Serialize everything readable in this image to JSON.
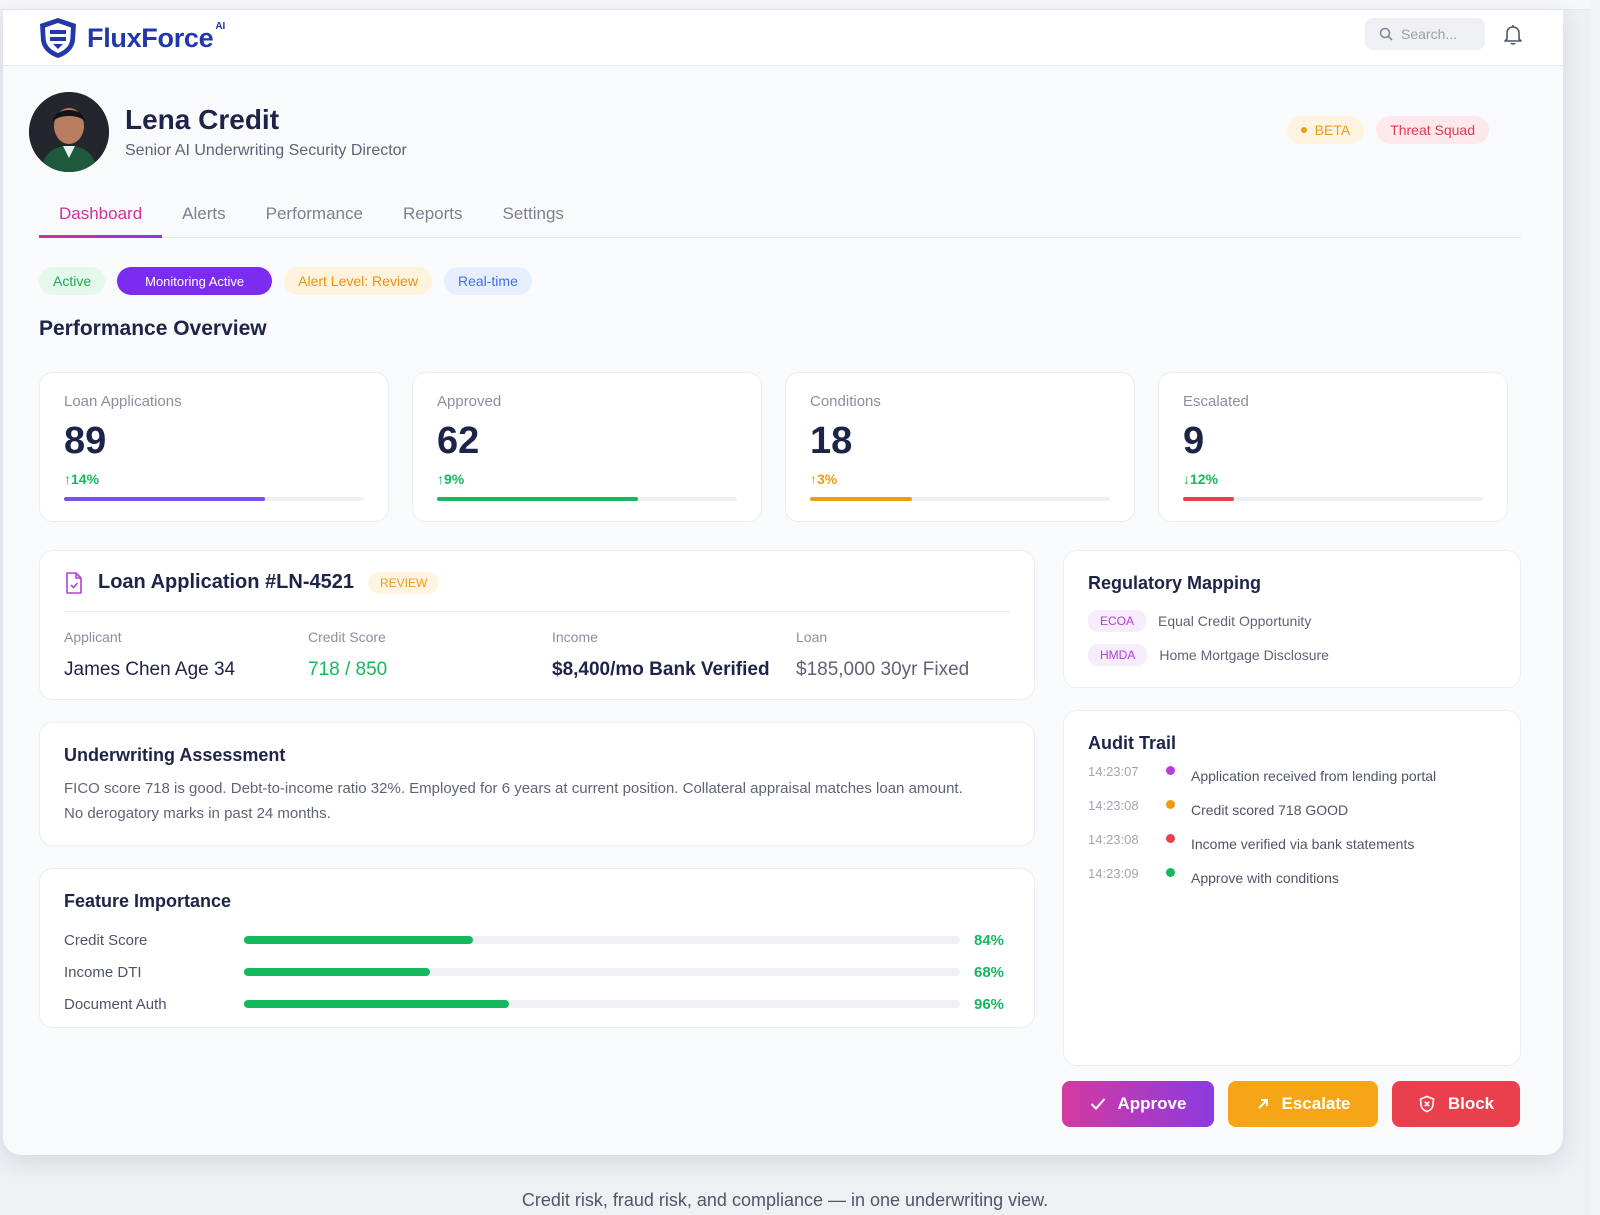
{
  "brand": {
    "name": "FluxForce",
    "superscript": "AI",
    "color": "#2338a8"
  },
  "header": {
    "search_placeholder": "Search...",
    "icons": [
      "search-icon",
      "bell-icon"
    ]
  },
  "profile": {
    "name": "Lena Credit",
    "title": "Senior AI Underwriting Security Director",
    "badges": [
      "BETA",
      "Threat Squad"
    ]
  },
  "tabs": [
    "Dashboard",
    "Alerts",
    "Performance",
    "Reports",
    "Settings"
  ],
  "active_tab": "Dashboard",
  "status_chips": [
    "Active",
    "Monitoring Active",
    "Alert Level: Review",
    "Real-time"
  ],
  "overview": {
    "title": "Performance Overview",
    "kpis": [
      {
        "label": "Loan Applications",
        "value": "89",
        "delta": "↑14%",
        "delta_color": "#16b85d",
        "bar_color": "#7b4ef0",
        "progress": 0.67
      },
      {
        "label": "Approved",
        "value": "62",
        "delta": "↑9%",
        "delta_color": "#16b85d",
        "bar_color": "#16b85d",
        "progress": 0.67
      },
      {
        "label": "Conditions",
        "value": "18",
        "delta": "↑3%",
        "delta_color": "#f29a13",
        "bar_color": "#f29a13",
        "progress": 0.34
      },
      {
        "label": "Escalated",
        "value": "9",
        "delta": "↓12%",
        "delta_color": "#16b85d",
        "bar_color": "#ea3f4c",
        "progress": 0.17
      }
    ]
  },
  "loan": {
    "title": "Loan Application #LN-4521",
    "status": "REVIEW",
    "fields": [
      {
        "label": "Applicant",
        "value": "James Chen Age 34",
        "color": "#1e2447"
      },
      {
        "label": "Credit Score",
        "value": "718 / 850",
        "color": "#16b85d"
      },
      {
        "label": "Income",
        "value": "$8,400/mo Bank Verified",
        "color": "#1e2447"
      },
      {
        "label": "Loan",
        "value": "$185,000 30yr Fixed",
        "color": "#5e6477"
      }
    ]
  },
  "assessment": {
    "title": "Underwriting Assessment",
    "text": "FICO score 718 is good. Debt-to-income ratio 32%. Employed for 6 years at current position. Collateral appraisal matches loan amount. No derogatory marks in past 24 months."
  },
  "features": {
    "title": "Feature Importance",
    "rows": [
      {
        "name": "Credit Score",
        "pct": "84%",
        "fill": 0.32
      },
      {
        "name": "Income DTI",
        "pct": "68%",
        "fill": 0.26
      },
      {
        "name": "Document Auth",
        "pct": "96%",
        "fill": 0.37
      }
    ]
  },
  "regulatory": {
    "title": "Regulatory Mapping",
    "items": [
      {
        "tag": "ECOA",
        "desc": "Equal Credit Opportunity"
      },
      {
        "tag": "HMDA",
        "desc": "Home Mortgage Disclosure"
      }
    ]
  },
  "audit": {
    "title": "Audit Trail",
    "entries": [
      {
        "time": "14:23:07",
        "text": "Application received from lending portal",
        "color": "#b340d6"
      },
      {
        "time": "14:23:08",
        "text": "Credit scored 718 GOOD",
        "color": "#f29a13"
      },
      {
        "time": "14:23:08",
        "text": "Income verified via bank statements",
        "color": "#ea3f4c"
      },
      {
        "time": "14:23:09",
        "text": "Approve with conditions",
        "color": "#16b85d"
      }
    ]
  },
  "actions": [
    "Approve",
    "Escalate",
    "Block"
  ],
  "caption": "Credit risk, fraud risk, and compliance — in one underwriting view."
}
